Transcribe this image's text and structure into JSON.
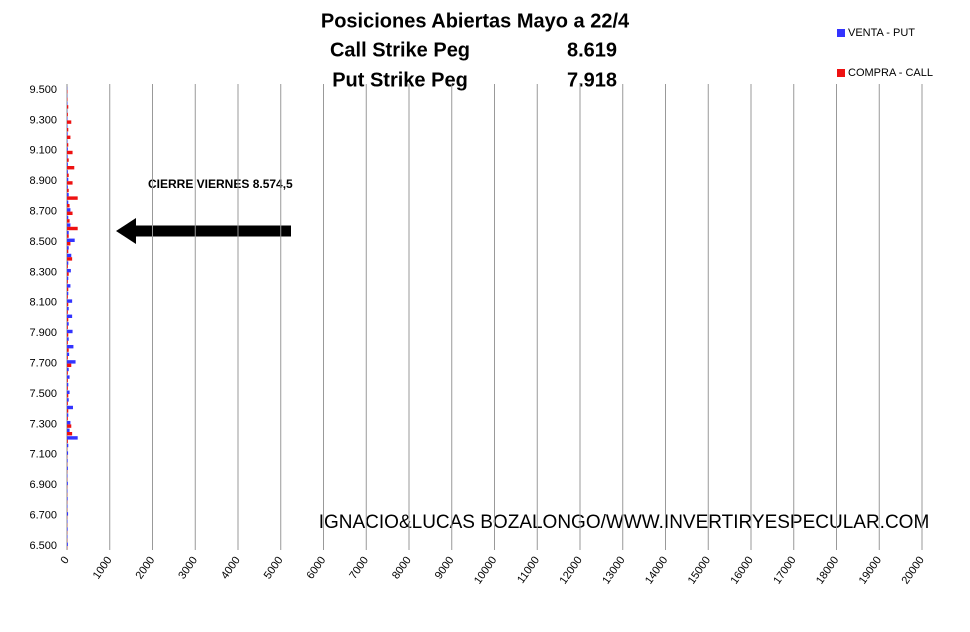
{
  "chart_data": {
    "type": "hbar",
    "title": "Posiciones Abiertas Mayo a 22/4",
    "subtitle_rows": [
      [
        "Call Strike Peg",
        "8.619"
      ],
      [
        "Put Strike Peg",
        "7.918"
      ]
    ],
    "annotation": "CIERRE VIERNES  8.574,5",
    "watermark": "IGNACIO&LUCAS BOZALONGO/WWW.INVERTIRYESPECULAR.COM",
    "categories": [
      "6.500",
      null,
      null,
      null,
      "6.700",
      null,
      null,
      null,
      "6.900",
      null,
      null,
      null,
      "7.100",
      null,
      null,
      null,
      "7.300",
      null,
      null,
      null,
      "7.500",
      null,
      null,
      null,
      "7.700",
      null,
      null,
      null,
      "7.900",
      null,
      null,
      null,
      "8.100",
      null,
      null,
      null,
      "8.300",
      null,
      null,
      null,
      "8.500",
      null,
      null,
      null,
      "8.700",
      null,
      null,
      null,
      "8.900",
      null,
      null,
      null,
      "9.100",
      null,
      null,
      null,
      "9.300",
      null,
      null,
      null,
      "9.500"
    ],
    "series": [
      {
        "name": "VENTA - PUT",
        "color": "#3333ff",
        "values": [
          20,
          10,
          15,
          10,
          25,
          10,
          15,
          10,
          20,
          10,
          20,
          15,
          25,
          30,
          250,
          60,
          80,
          30,
          140,
          40,
          60,
          30,
          60,
          40,
          200,
          50,
          150,
          40,
          130,
          40,
          120,
          40,
          120,
          30,
          80,
          30,
          90,
          30,
          100,
          40,
          180,
          40,
          80,
          30,
          80,
          30,
          40,
          20,
          30,
          20,
          20,
          15,
          20,
          10,
          15,
          10,
          10,
          5,
          10,
          5,
          5
        ]
      },
      {
        "name": "COMPRA - CALL",
        "color": "#ee1111",
        "values": [
          5,
          5,
          5,
          5,
          5,
          5,
          5,
          5,
          5,
          5,
          5,
          5,
          5,
          5,
          20,
          120,
          100,
          20,
          30,
          20,
          30,
          20,
          20,
          20,
          100,
          20,
          40,
          20,
          30,
          20,
          30,
          20,
          30,
          20,
          30,
          20,
          40,
          20,
          120,
          30,
          80,
          40,
          250,
          60,
          130,
          60,
          250,
          40,
          130,
          40,
          170,
          40,
          130,
          30,
          80,
          30,
          100,
          20,
          30,
          10,
          10
        ]
      }
    ],
    "xlim": [
      0,
      20000
    ],
    "xticks": [
      0,
      1000,
      2000,
      3000,
      4000,
      5000,
      6000,
      7000,
      8000,
      9000,
      10000,
      11000,
      12000,
      13000,
      14000,
      15000,
      16000,
      17000,
      18000,
      19000,
      20000
    ],
    "grid": true
  }
}
